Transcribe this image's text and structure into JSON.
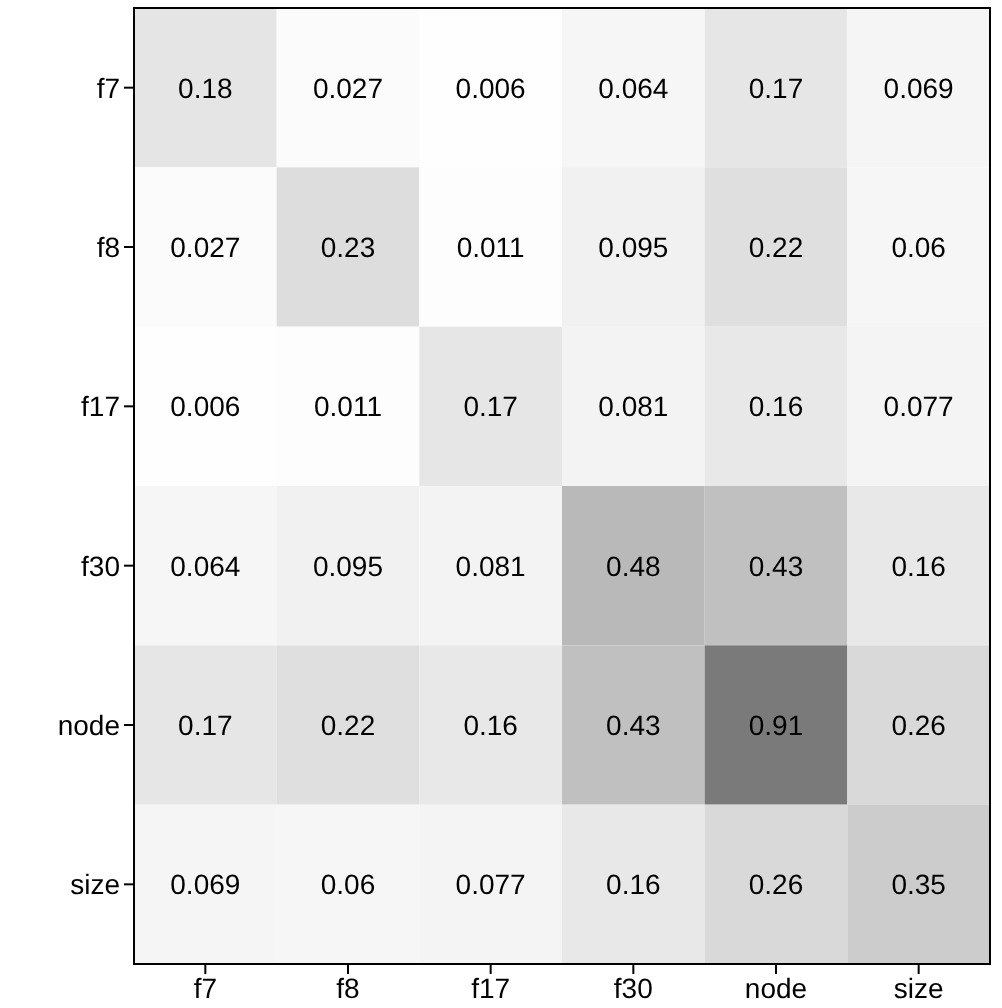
{
  "chart_data": {
    "type": "heatmap",
    "data_labels": true,
    "categories": [
      "f7",
      "f8",
      "f17",
      "f30",
      "node",
      "size"
    ],
    "y_categories": [
      "f7",
      "f8",
      "f17",
      "f30",
      "node",
      "size"
    ],
    "cells": [
      [
        0.18,
        0.027,
        0.006,
        0.064,
        0.17,
        0.069
      ],
      [
        0.027,
        0.23,
        0.011,
        0.095,
        0.22,
        0.06
      ],
      [
        0.006,
        0.011,
        0.17,
        0.081,
        0.16,
        0.077
      ],
      [
        0.064,
        0.095,
        0.081,
        0.48,
        0.43,
        0.16
      ],
      [
        0.17,
        0.22,
        0.16,
        0.43,
        0.91,
        0.26
      ],
      [
        0.069,
        0.06,
        0.077,
        0.16,
        0.26,
        0.35
      ]
    ]
  }
}
